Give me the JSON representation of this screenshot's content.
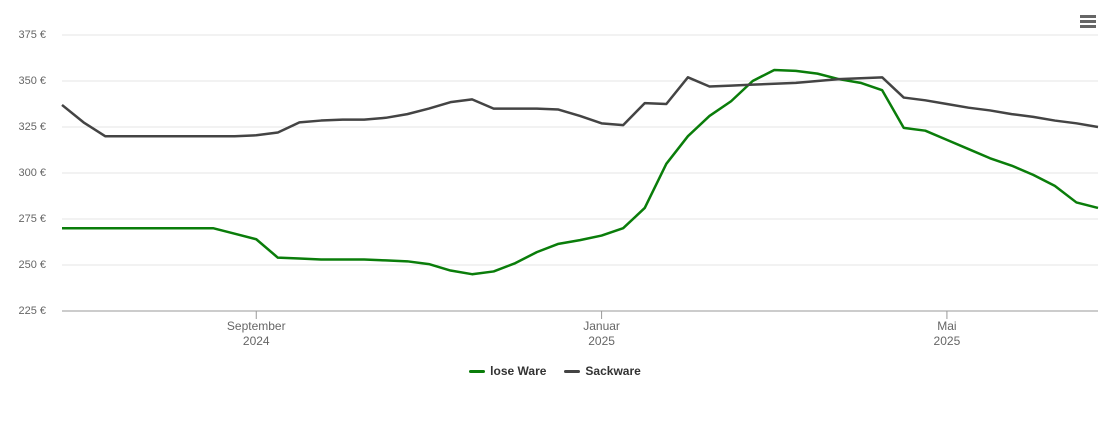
{
  "chart_data": {
    "type": "line",
    "categories": [
      null,
      null,
      null,
      null,
      null,
      null,
      null,
      null,
      null,
      "September\n2024",
      null,
      null,
      null,
      null,
      null,
      null,
      null,
      null,
      null,
      null,
      null,
      null,
      null,
      null,
      null,
      "Januar\n2025",
      null,
      null,
      null,
      null,
      null,
      null,
      null,
      null,
      null,
      null,
      null,
      null,
      null,
      null,
      null,
      "Mai\n2025",
      null,
      null,
      null,
      null,
      null,
      null,
      null
    ],
    "series": [
      {
        "name": "lose Ware",
        "color": "#0a7d0a",
        "values": [
          270,
          270,
          270,
          270,
          270,
          270,
          270,
          270,
          267,
          264,
          254,
          253.5,
          253,
          253,
          253,
          252.5,
          252,
          250.5,
          247,
          245,
          246.5,
          251,
          257,
          261.5,
          263.5,
          266,
          270,
          281,
          305,
          320,
          331,
          339,
          350,
          356,
          355.5,
          354,
          351,
          349,
          345,
          324.5,
          323,
          318,
          313,
          308,
          304,
          299,
          293,
          284,
          281
        ]
      },
      {
        "name": "Sackware",
        "color": "#444444",
        "values": [
          337,
          327.5,
          320,
          320,
          320,
          320,
          320,
          320,
          320,
          320.5,
          322,
          327.5,
          328.5,
          329,
          329,
          330,
          332,
          335,
          338.5,
          340,
          335,
          335,
          335,
          334.5,
          331,
          327,
          326,
          338,
          337.5,
          352,
          347,
          347.5,
          348,
          348.5,
          349,
          350,
          351,
          351.5,
          352,
          341,
          339.5,
          337.5,
          335.5,
          334,
          332,
          330.5,
          328.5,
          327,
          325
        ]
      }
    ],
    "ylim": [
      225,
      375
    ],
    "yticks": [
      {
        "value": 225,
        "label": "225 €"
      },
      {
        "value": 250,
        "label": "250 €"
      },
      {
        "value": 275,
        "label": "275 €"
      },
      {
        "value": 300,
        "label": "300 €"
      },
      {
        "value": 325,
        "label": "325 €"
      },
      {
        "value": 350,
        "label": "350 €"
      },
      {
        "value": 375,
        "label": "375 €"
      }
    ],
    "grid": true
  }
}
